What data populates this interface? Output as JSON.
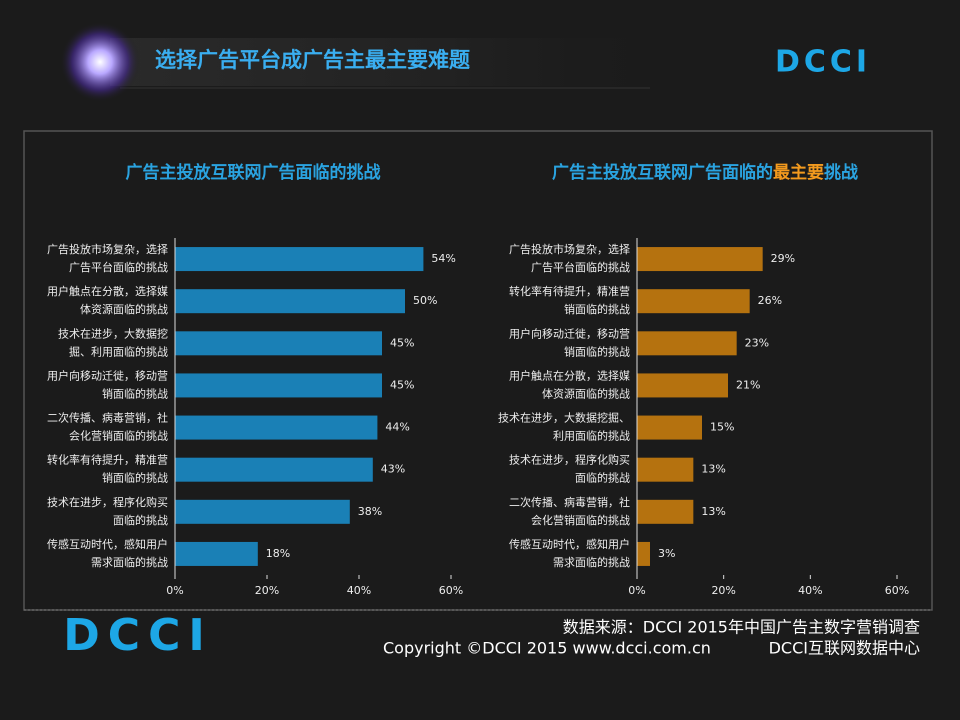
{
  "header": {
    "title": "选择广告平台成广告主最主要难题",
    "logo": "DCCI"
  },
  "chart_data": [
    {
      "type": "hbar",
      "title": [
        {
          "text": "广告主投放互联网广告面临的挑战",
          "color": "#2aa3e0"
        }
      ],
      "categories": [
        [
          "广告投放市场复杂，选择",
          "广告平台面临的挑战"
        ],
        [
          "用户触点在分散，选择媒",
          "体资源面临的挑战"
        ],
        [
          "技术在进步，大数据挖",
          "掘、利用面临的挑战"
        ],
        [
          "用户向移动迁徙，移动营",
          "销面临的挑战"
        ],
        [
          "二次传播、病毒营销，社",
          "会化营销面临的挑战"
        ],
        [
          "转化率有待提升，精准营",
          "销面临的挑战"
        ],
        [
          "技术在进步，程序化购买",
          "面临的挑战"
        ],
        [
          "传感互动时代，感知用户",
          "需求面临的挑战"
        ]
      ],
      "values": [
        54,
        50,
        45,
        45,
        44,
        43,
        38,
        18
      ],
      "value_labels": [
        "54%",
        "50%",
        "45%",
        "45%",
        "44%",
        "43%",
        "38%",
        "18%"
      ],
      "color": "#1a80b6",
      "xlim": [
        0,
        60
      ],
      "xticks": [
        {
          "value": 0,
          "label": "0%"
        },
        {
          "value": 20,
          "label": "20%"
        },
        {
          "value": 40,
          "label": "40%"
        },
        {
          "value": 60,
          "label": "60%"
        }
      ]
    },
    {
      "type": "hbar",
      "title": [
        {
          "text": "广告主投放互联网广告面临的",
          "color": "#2aa3e0"
        },
        {
          "text": "最主要",
          "color": "#f39a1e"
        },
        {
          "text": "挑战",
          "color": "#2aa3e0"
        }
      ],
      "categories": [
        [
          "广告投放市场复杂，选择",
          "广告平台面临的挑战"
        ],
        [
          "转化率有待提升，精准营",
          "销面临的挑战"
        ],
        [
          "用户向移动迁徙，移动营",
          "销面临的挑战"
        ],
        [
          "用户触点在分散，选择媒",
          "体资源面临的挑战"
        ],
        [
          "技术在进步，大数据挖掘、",
          "利用面临的挑战"
        ],
        [
          "技术在进步，程序化购买",
          "面临的挑战"
        ],
        [
          "二次传播、病毒营销，社",
          "会化营销面临的挑战"
        ],
        [
          "传感互动时代，感知用户",
          "需求面临的挑战"
        ]
      ],
      "values": [
        29,
        26,
        23,
        21,
        15,
        13,
        13,
        3
      ],
      "value_labels": [
        "29%",
        "26%",
        "23%",
        "21%",
        "15%",
        "13%",
        "13%",
        "3%"
      ],
      "color": "#b5720f",
      "xlim": [
        0,
        60
      ],
      "xticks": [
        {
          "value": 0,
          "label": "0%"
        },
        {
          "value": 20,
          "label": "20%"
        },
        {
          "value": 40,
          "label": "40%"
        },
        {
          "value": 60,
          "label": "60%"
        }
      ]
    }
  ],
  "footer": {
    "logo": "DCCI",
    "source": "数据来源：DCCI  2015年中国广告主数字营销调查",
    "copyright": "Copyright ©DCCI 2015 www.dcci.com.cn",
    "org": "DCCI互联网数据中心"
  }
}
